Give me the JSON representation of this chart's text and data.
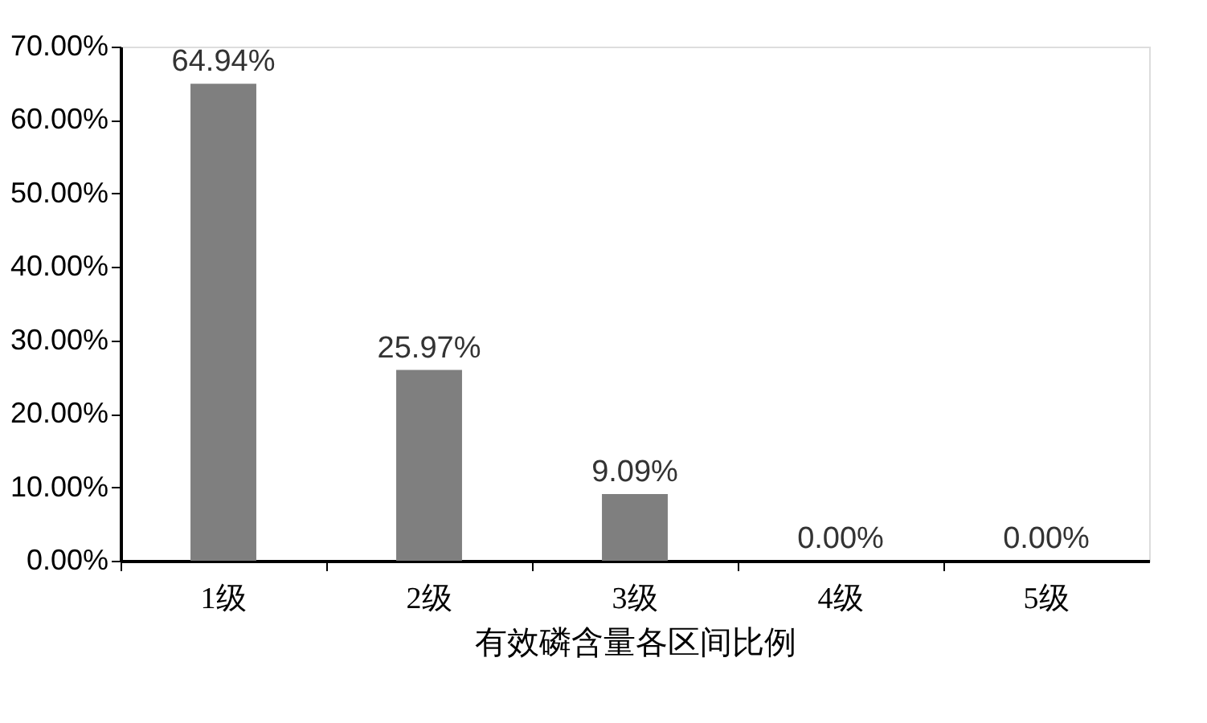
{
  "chart_data": {
    "type": "bar",
    "xlabel": "有效磷含量各区间比例",
    "categories": [
      "1级",
      "2级",
      "3级",
      "4级",
      "5级"
    ],
    "values": [
      64.94,
      25.97,
      9.09,
      0.0,
      0.0
    ],
    "value_labels": [
      "64.94%",
      "25.97%",
      "9.09%",
      "0.00%",
      "0.00%"
    ],
    "color": "#7f7f7f",
    "ylim": [
      0,
      70
    ],
    "yticks": [
      {
        "value": 0,
        "label": "0.00%"
      },
      {
        "value": 10,
        "label": "10.00%"
      },
      {
        "value": 20,
        "label": "20.00%"
      },
      {
        "value": 30,
        "label": "30.00%"
      },
      {
        "value": 40,
        "label": "40.00%"
      },
      {
        "value": 50,
        "label": "50.00%"
      },
      {
        "value": 60,
        "label": "60.00%"
      },
      {
        "value": 70,
        "label": "70.00%"
      }
    ],
    "grid": false
  }
}
